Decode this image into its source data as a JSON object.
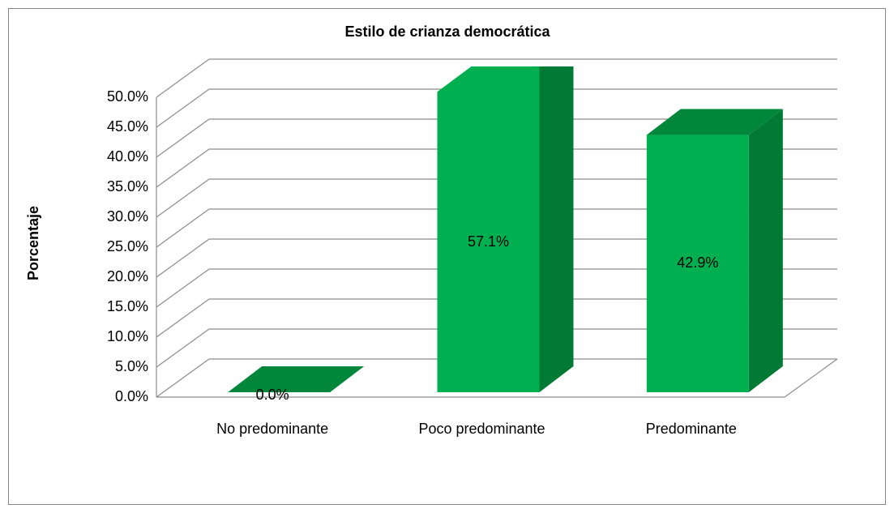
{
  "chart_data": {
    "type": "bar",
    "title": "Estilo de crianza democrática",
    "ylabel": "Porcentaje",
    "categories": [
      "No predominante",
      "Poco predominante",
      "Predominante"
    ],
    "values": [
      0,
      57.1,
      42.9
    ],
    "value_labels": [
      "0.0%",
      "57.1%",
      "42.9%"
    ],
    "color": "#00b050",
    "ylim": [
      0,
      50
    ],
    "yticks": [
      {
        "value": 0,
        "label": "0.0%"
      },
      {
        "value": 5,
        "label": "5.0%"
      },
      {
        "value": 10,
        "label": "10.0%"
      },
      {
        "value": 15,
        "label": "15.0%"
      },
      {
        "value": 20,
        "label": "20.0%"
      },
      {
        "value": 25,
        "label": "25.0%"
      },
      {
        "value": 30,
        "label": "30.0%"
      },
      {
        "value": 35,
        "label": "35.0%"
      },
      {
        "value": 40,
        "label": "40.0%"
      },
      {
        "value": 45,
        "label": "45.0%"
      },
      {
        "value": 50,
        "label": "50.0%"
      }
    ],
    "grid": true
  }
}
